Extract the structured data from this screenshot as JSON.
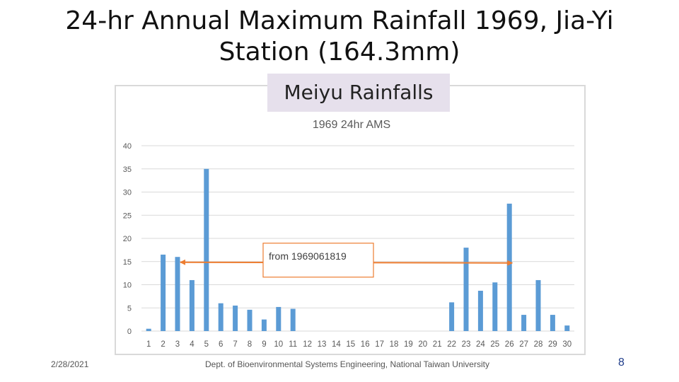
{
  "slide": {
    "title_line1": "24-hr Annual Maximum Rainfall 1969, Jia-Yi",
    "title_line2": "Station (164.3mm)",
    "callout": "Meiyu Rainfalls",
    "footer_date": "2/28/2021",
    "footer_dept": "Dept. of Bioenvironmental Systems Engineering, National Taiwan University",
    "page_number": "8"
  },
  "chart_data": {
    "type": "bar",
    "title": "1969 24hr AMS",
    "xlabel": "",
    "ylabel": "",
    "ylim": [
      0,
      40
    ],
    "yticks": [
      0,
      5,
      10,
      15,
      20,
      25,
      30,
      35,
      40
    ],
    "grid": true,
    "bar_color": "#5b9bd5",
    "categories": [
      "1",
      "2",
      "3",
      "4",
      "5",
      "6",
      "7",
      "8",
      "9",
      "10",
      "11",
      "12",
      "13",
      "14",
      "15",
      "16",
      "17",
      "18",
      "19",
      "20",
      "21",
      "22",
      "23",
      "24",
      "25",
      "26",
      "27",
      "28",
      "29",
      "30"
    ],
    "values": [
      0.5,
      16.5,
      16,
      11,
      35,
      6,
      5.5,
      4.6,
      2.5,
      5.2,
      4.8,
      0,
      0,
      0,
      0,
      0,
      0,
      0,
      0,
      0,
      0,
      6.2,
      18,
      8.7,
      10.5,
      27.5,
      3.5,
      11,
      3.5,
      1.2
    ],
    "annotation": {
      "text": "from 1969061819",
      "arrow_color": "#ed7d31",
      "arrow_from_category": "3",
      "arrow_to_category": "26",
      "arrow_value": 15
    }
  }
}
